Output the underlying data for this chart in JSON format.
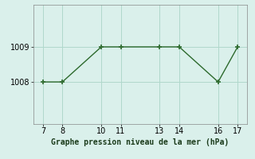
{
  "x": [
    7,
    8,
    10,
    11,
    13,
    14,
    16,
    17
  ],
  "y": [
    1008,
    1008,
    1009,
    1009,
    1009,
    1009,
    1008,
    1009
  ],
  "line_color": "#2d6a2d",
  "marker_color": "#2d6a2d",
  "bg_color": "#daf0eb",
  "grid_color": "#b0d8cc",
  "xlabel": "Graphe pression niveau de la mer (hPa)",
  "xlim": [
    6.5,
    17.5
  ],
  "ylim": [
    1006.8,
    1010.2
  ],
  "yticks": [
    1008,
    1009
  ],
  "xticks": [
    7,
    8,
    10,
    11,
    13,
    14,
    16,
    17
  ],
  "xlabel_fontsize": 7,
  "tick_fontsize": 7,
  "line_width": 1.0,
  "marker_size": 5
}
